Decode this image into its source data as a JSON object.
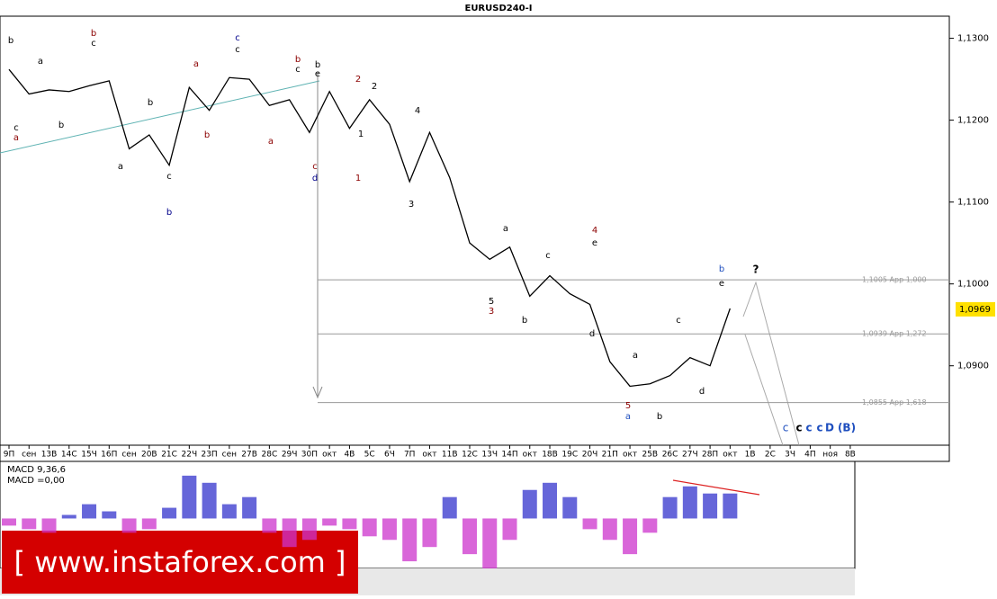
{
  "chart_data": {
    "type": "line",
    "title": "EURUSD240-I",
    "categories": [
      "9П",
      "сен",
      "13В",
      "14С",
      "15Ч",
      "16П",
      "сен",
      "20В",
      "21С",
      "22Ч",
      "23П",
      "сен",
      "27В",
      "28С",
      "29Ч",
      "30П",
      "окт",
      "4В",
      "5С",
      "6Ч",
      "7П",
      "окт",
      "11В",
      "12С",
      "13Ч",
      "14П",
      "окт",
      "18В",
      "19С",
      "20Ч",
      "21П",
      "окт",
      "25В",
      "26С",
      "27Ч",
      "28П",
      "окт",
      "1В",
      "2С",
      "3Ч",
      "4П",
      "ноя",
      "8В"
    ],
    "series": [
      {
        "name": "EURUSD240-I",
        "color": "#000000",
        "values": [
          1.1262,
          1.1232,
          1.1237,
          1.1235,
          1.1242,
          1.1248,
          1.1165,
          1.1182,
          1.1145,
          1.124,
          1.1212,
          1.1252,
          1.125,
          1.1218,
          1.1225,
          1.1185,
          1.1235,
          1.119,
          1.1225,
          1.1195,
          1.1125,
          1.1185,
          1.113,
          1.105,
          1.103,
          1.1045,
          1.0985,
          1.101,
          1.0988,
          1.0975,
          1.0905,
          1.0875,
          1.0878,
          1.0888,
          1.091,
          1.09,
          1.097,
          null,
          null,
          null,
          null,
          null,
          null
        ]
      }
    ],
    "ylim": [
      1.0803,
      1.1327
    ],
    "yticks": [
      {
        "value": 1.13,
        "label": "1,1300"
      },
      {
        "value": 1.12,
        "label": "1,1200"
      },
      {
        "value": 1.11,
        "label": "1,1100"
      },
      {
        "value": 1.1,
        "label": "1,1000"
      },
      {
        "value": 1.09,
        "label": "1,0900"
      }
    ],
    "last_price": {
      "value": 1.0969,
      "label": "1,0969"
    },
    "levels": [
      {
        "value": 1.1005,
        "label": "1,1005 App 1,000"
      },
      {
        "value": 1.0939,
        "label": "1,0939 App 1,272"
      },
      {
        "value": 1.0855,
        "label": "1,0855 App 1,618"
      }
    ],
    "annotations": [
      {
        "text": "b",
        "color": "#000"
      },
      {
        "text": "c",
        "color": "#000"
      },
      {
        "text": "a",
        "color": "#8b0000"
      },
      {
        "text": "a",
        "color": "#000"
      },
      {
        "text": "b",
        "color": "#000"
      },
      {
        "text": "b",
        "color": "#8b0000"
      },
      {
        "text": "c",
        "color": "#000"
      },
      {
        "text": "a",
        "color": "#000"
      },
      {
        "text": "b",
        "color": "#000"
      },
      {
        "text": "c",
        "color": "#000"
      },
      {
        "text": "b",
        "color": "#00008b"
      },
      {
        "text": "a",
        "color": "#8b0000"
      },
      {
        "text": "b",
        "color": "#8b0000"
      },
      {
        "text": "c",
        "color": "#00008b"
      },
      {
        "text": "c",
        "color": "#000"
      },
      {
        "text": "a",
        "color": "#8b0000"
      },
      {
        "text": "b",
        "color": "#8b0000"
      },
      {
        "text": "c",
        "color": "#000"
      },
      {
        "text": "b",
        "color": "#000"
      },
      {
        "text": "e",
        "color": "#000"
      },
      {
        "text": "c",
        "color": "#8b0000"
      },
      {
        "text": "d",
        "color": "#00008b"
      },
      {
        "text": "2",
        "color": "#8b0000"
      },
      {
        "text": "2",
        "color": "#000"
      },
      {
        "text": "1",
        "color": "#000"
      },
      {
        "text": "1",
        "color": "#8b0000"
      },
      {
        "text": "4",
        "color": "#000"
      },
      {
        "text": "3",
        "color": "#000"
      },
      {
        "text": "a",
        "color": "#000"
      },
      {
        "text": "5",
        "color": "#000"
      },
      {
        "text": "3",
        "color": "#8b0000"
      },
      {
        "text": "b",
        "color": "#000"
      },
      {
        "text": "c",
        "color": "#000"
      },
      {
        "text": "4",
        "color": "#8b0000"
      },
      {
        "text": "e",
        "color": "#000"
      },
      {
        "text": "d",
        "color": "#000"
      },
      {
        "text": "a",
        "color": "#000"
      },
      {
        "text": "5",
        "color": "#8b0000"
      },
      {
        "text": "a",
        "color": "#1f4fbf"
      },
      {
        "text": "b",
        "color": "#000"
      },
      {
        "text": "c",
        "color": "#000"
      },
      {
        "text": "d",
        "color": "#000"
      },
      {
        "text": "b",
        "color": "#1f4fbf"
      },
      {
        "text": "e",
        "color": "#000"
      },
      {
        "text": "?",
        "color": "#000"
      },
      {
        "text": "c",
        "color": "#1f4fbf"
      },
      {
        "text": "c",
        "color": "#000"
      },
      {
        "text": "c",
        "color": "#1f4fbf"
      },
      {
        "text": "c",
        "color": "#1f4fbf"
      },
      {
        "text": "D",
        "color": "#1f4fbf"
      },
      {
        "text": "(B)",
        "color": "#1f4fbf"
      }
    ],
    "macd": {
      "title": "MACD 9,36,6",
      "value_text": "MACD =0,00",
      "ylim": [
        -0.0014,
        0.0016
      ],
      "positive_color": "#3333cc",
      "negative_color": "#cc33cc",
      "values": [
        -0.0002,
        -0.0003,
        -0.0004,
        0.0001,
        0.0004,
        0.0002,
        -0.0004,
        -0.0003,
        0.0003,
        0.0012,
        0.001,
        0.0004,
        0.0006,
        -0.0004,
        -0.0008,
        -0.0006,
        -0.0002,
        -0.0003,
        -0.0005,
        -0.0006,
        -0.0012,
        -0.0008,
        0.0006,
        -0.001,
        -0.0014,
        -0.0006,
        0.0008,
        0.001,
        0.0006,
        -0.0003,
        -0.0006,
        -0.001,
        -0.0004,
        0.0006,
        0.0009,
        0.0007,
        0.0007,
        null,
        null,
        null,
        null,
        null,
        null
      ]
    },
    "watermark": "[ www.instaforex.com ]"
  }
}
